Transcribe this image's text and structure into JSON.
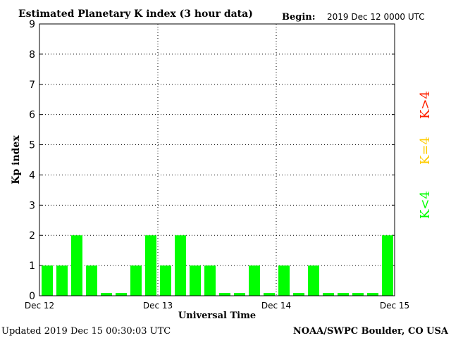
{
  "header": {
    "title": "Estimated Planetary K index (3 hour data)",
    "begin_label": "Begin:",
    "begin_value": "2019 Dec 12 0000 UTC"
  },
  "footer": {
    "updated": "Updated 2019 Dec 15 00:30:03 UTC",
    "credit": "NOAA/SWPC Boulder, CO USA"
  },
  "legend": {
    "above": "K>4",
    "equal": "K=4",
    "below": "K<4",
    "colors": {
      "above": "#ff2200",
      "equal": "#ffcc00",
      "below": "#00ff00"
    }
  },
  "chart_data": {
    "type": "bar",
    "xlabel": "Universal Time",
    "ylabel": "Kp index",
    "ylim": [
      0,
      9
    ],
    "yticks": [
      "0",
      "1",
      "2",
      "3",
      "4",
      "5",
      "6",
      "7",
      "8",
      "9"
    ],
    "xtick_labels": [
      "Dec 12",
      "Dec 13",
      "Dec 14",
      "Dec 15"
    ],
    "grid": true,
    "bar_color": "#00ff00",
    "values": [
      1,
      1,
      2,
      1,
      0,
      0,
      1,
      2,
      1,
      2,
      1,
      1,
      0,
      0,
      1,
      0,
      1,
      0,
      1,
      0,
      0,
      0,
      0,
      2
    ]
  }
}
